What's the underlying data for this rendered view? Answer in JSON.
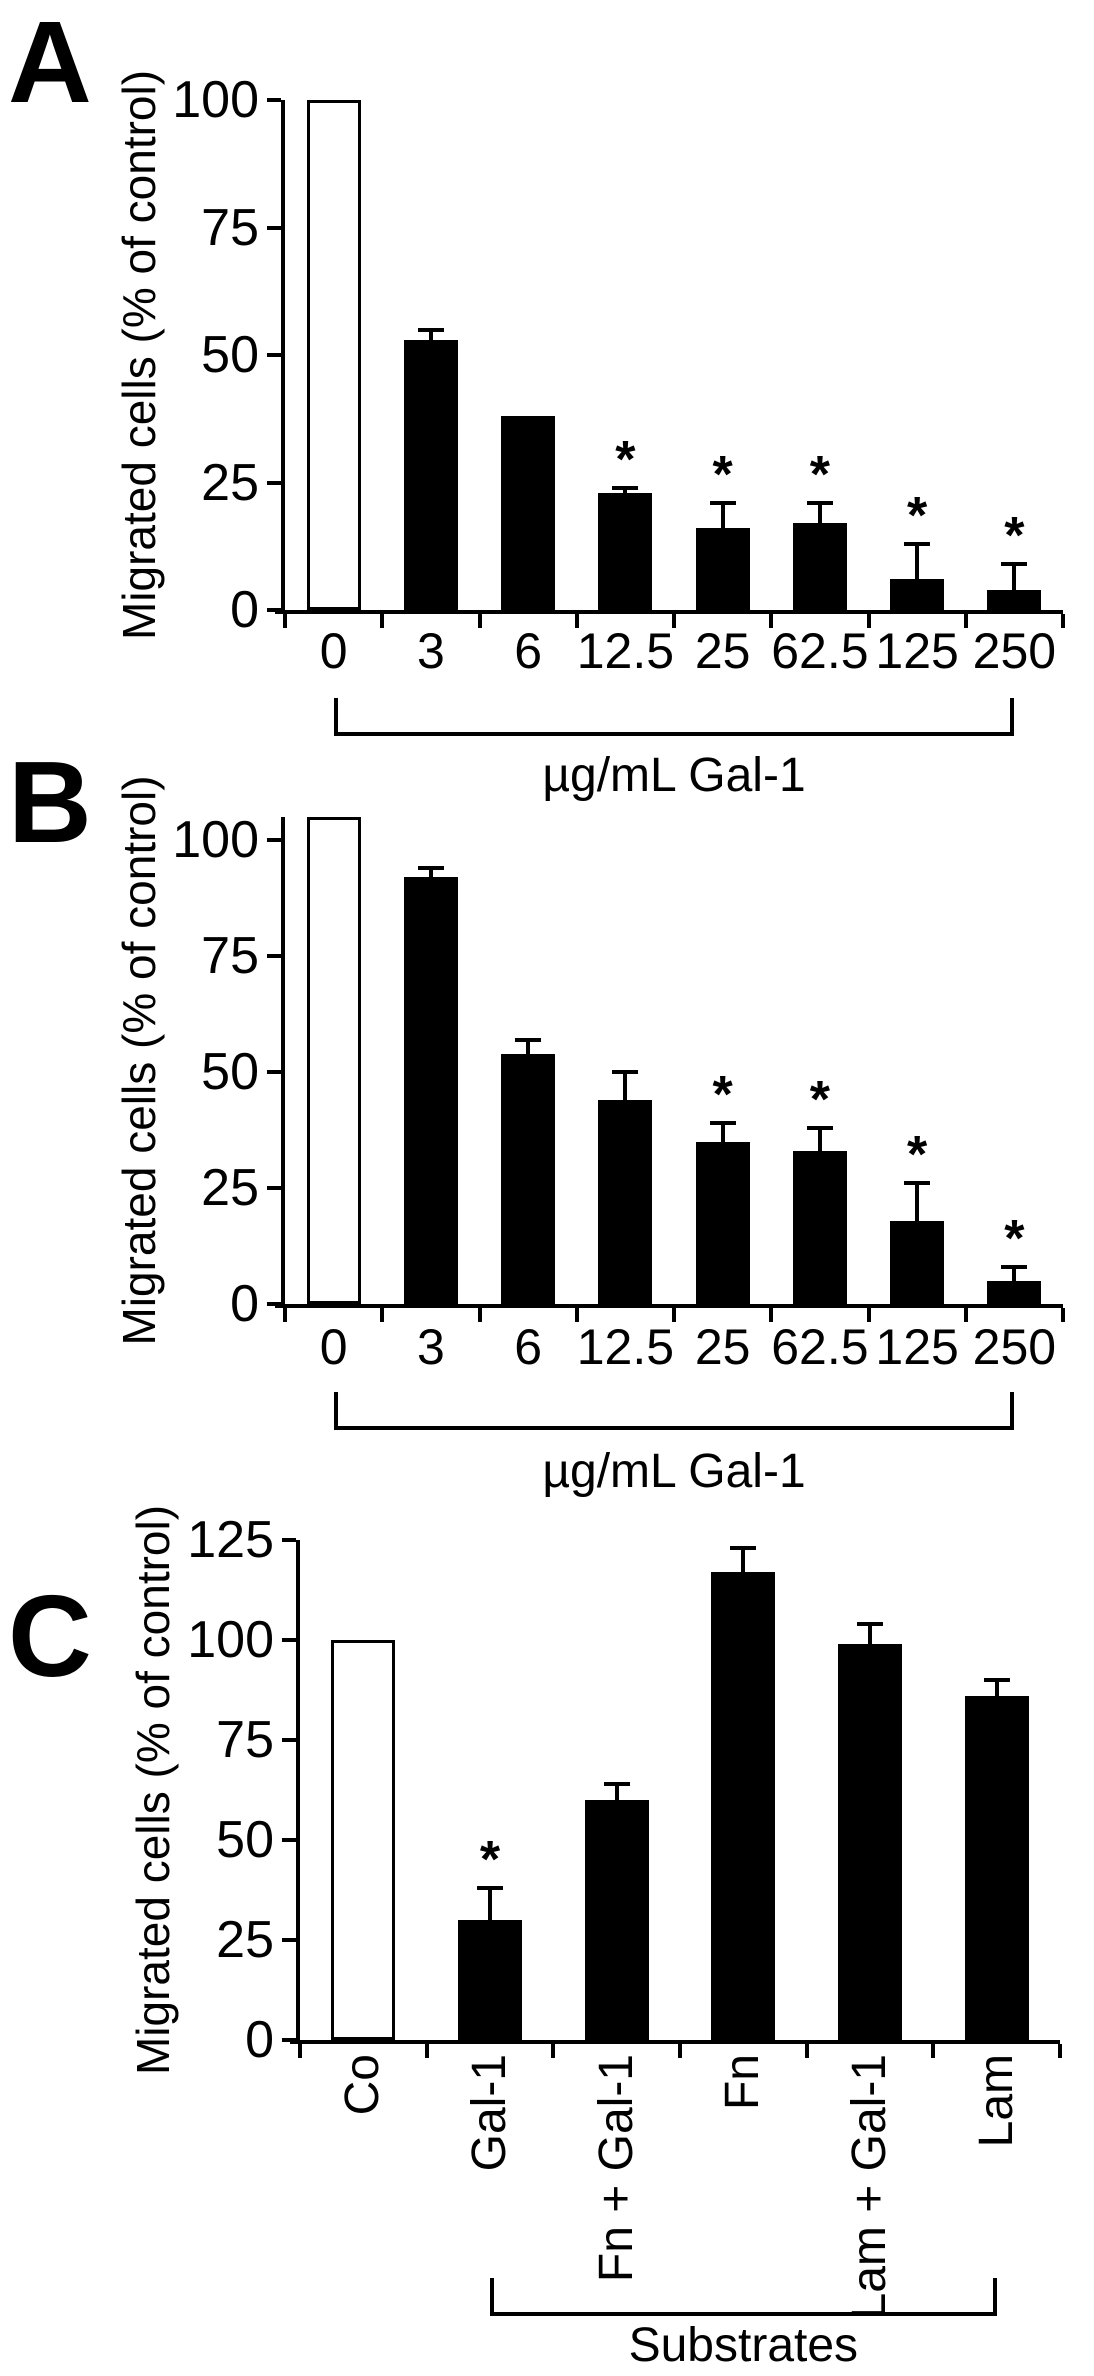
{
  "figure": {
    "background": "#ffffff",
    "ink": "#000000",
    "sig_marker": "*",
    "ylabel": "Migrated cells (% of control)"
  },
  "chart_data": [
    {
      "panel": "A",
      "type": "bar",
      "ylabel": "Migrated cells (% of control)",
      "xlabel": "µg/mL Gal-1",
      "categories": [
        "0",
        "3",
        "6",
        "12.5",
        "25",
        "62.5",
        "125",
        "250"
      ],
      "values": [
        100,
        53,
        38,
        23,
        16,
        17,
        6,
        4
      ],
      "errors": [
        0,
        2,
        0,
        1,
        5,
        4,
        7,
        5
      ],
      "significant": [
        false,
        false,
        false,
        true,
        true,
        true,
        true,
        true
      ],
      "bar_fill": [
        "white",
        "black",
        "black",
        "black",
        "black",
        "black",
        "black",
        "black"
      ],
      "yticks": [
        100,
        75,
        50,
        25,
        0
      ],
      "ylim": [
        0,
        100
      ],
      "grid": false,
      "legend": null,
      "x_tick_rotation": 0,
      "bracket_span": [
        "0",
        "250"
      ]
    },
    {
      "panel": "B",
      "type": "bar",
      "ylabel": "Migrated cells (% of control)",
      "xlabel": "µg/mL Gal-1",
      "categories": [
        "0",
        "3",
        "6",
        "12.5",
        "25",
        "62.5",
        "125",
        "250"
      ],
      "values": [
        105,
        92,
        54,
        44,
        35,
        33,
        18,
        5
      ],
      "errors": [
        0,
        2,
        3,
        6,
        4,
        5,
        8,
        3
      ],
      "significant": [
        false,
        false,
        false,
        false,
        true,
        true,
        true,
        true
      ],
      "bar_fill": [
        "white",
        "black",
        "black",
        "black",
        "black",
        "black",
        "black",
        "black"
      ],
      "yticks": [
        100,
        75,
        50,
        25,
        0
      ],
      "ylim": [
        0,
        105
      ],
      "grid": false,
      "legend": null,
      "x_tick_rotation": 0,
      "bracket_span": [
        "0",
        "250"
      ]
    },
    {
      "panel": "C",
      "type": "bar",
      "ylabel": "Migrated cells (% of control)",
      "xlabel": "Substrates",
      "categories": [
        "Co",
        "Gal-1",
        "Fn + Gal-1",
        "Fn",
        "Lam + Gal-1",
        "Lam"
      ],
      "values": [
        100,
        30,
        60,
        117,
        99,
        86
      ],
      "errors": [
        0,
        8,
        4,
        6,
        5,
        4
      ],
      "significant": [
        false,
        true,
        false,
        false,
        false,
        false
      ],
      "bar_fill": [
        "white",
        "black",
        "black",
        "black",
        "black",
        "black"
      ],
      "yticks": [
        125,
        100,
        75,
        50,
        25,
        0
      ],
      "ylim": [
        0,
        125
      ],
      "grid": false,
      "legend": null,
      "x_tick_rotation": 90,
      "bracket_span": [
        "Gal-1",
        "Lam"
      ]
    }
  ]
}
